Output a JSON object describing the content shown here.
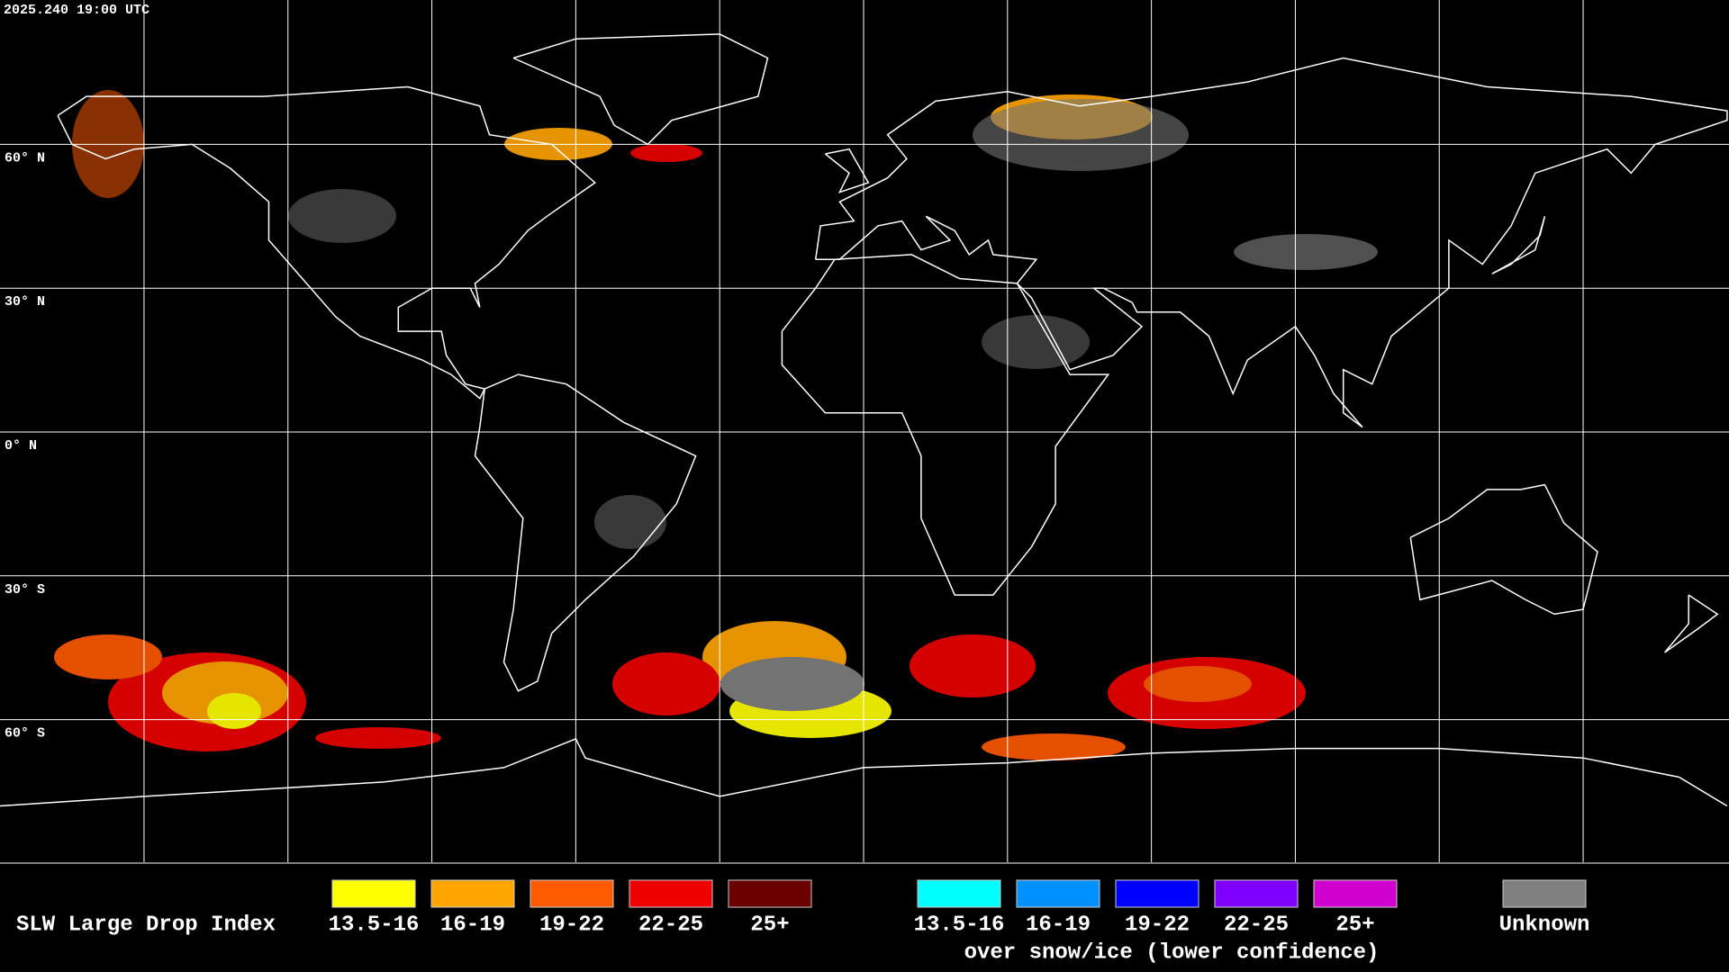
{
  "header": {
    "timestamp": "2025.240 19:00 UTC"
  },
  "map": {
    "lat_labels": [
      "60° N",
      "30° N",
      "0° N",
      "30° S",
      "60° S"
    ]
  },
  "legend": {
    "title": "SLW Large Drop Index",
    "groups": [
      {
        "items": [
          {
            "label": "13.5-16",
            "color": "#ffff00"
          },
          {
            "label": "16-19",
            "color": "#ffa500"
          },
          {
            "label": "19-22",
            "color": "#ff5a00"
          },
          {
            "label": "22-25",
            "color": "#ee0000"
          },
          {
            "label": "25+",
            "color": "#6a0000"
          }
        ]
      },
      {
        "items": [
          {
            "label": "13.5-16",
            "color": "#00ffff"
          },
          {
            "label": "16-19",
            "color": "#0090ff"
          },
          {
            "label": "19-22",
            "color": "#0000ff"
          },
          {
            "label": "22-25",
            "color": "#8000ff"
          },
          {
            "label": "25+",
            "color": "#d000d0"
          }
        ],
        "caption": "over snow/ice (lower confidence)"
      }
    ],
    "unknown": {
      "label": "Unknown",
      "color": "#808080"
    }
  }
}
